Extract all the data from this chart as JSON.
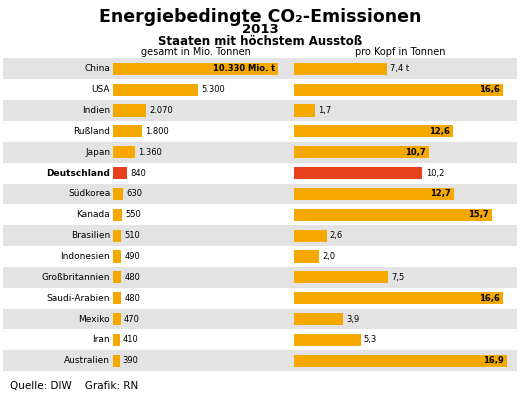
{
  "title_line1": "Energiebedingte CO₂-Emissionen",
  "title_line2": "2013",
  "title_line3": "Staaten mit höchstem Ausstoß",
  "col_header_left": "gesamt in Mio. Tonnen",
  "col_header_right": "pro Kopf in Tonnen",
  "footer": "Quelle: DIW    Grafik: RN",
  "countries": [
    "China",
    "USA",
    "Indien",
    "Rußland",
    "Japan",
    "Deutschland",
    "Südkorea",
    "Kanada",
    "Brasilien",
    "Indonesien",
    "Großbritannien",
    "Saudi-Arabien",
    "Mexiko",
    "Iran",
    "Australien"
  ],
  "total_values": [
    10330,
    5300,
    2070,
    1800,
    1360,
    840,
    630,
    550,
    510,
    490,
    480,
    480,
    470,
    410,
    390
  ],
  "total_labels": [
    "10.330 Mio. t",
    "5.300",
    "2.070",
    "1.800",
    "1.360",
    "840",
    "630",
    "550",
    "510",
    "490",
    "480",
    "480",
    "470",
    "410",
    "390"
  ],
  "percapita_values": [
    7.4,
    16.6,
    1.7,
    12.6,
    10.7,
    10.2,
    12.7,
    15.7,
    2.6,
    2.0,
    7.5,
    16.6,
    3.9,
    5.3,
    16.9
  ],
  "percapita_labels": [
    "7,4 t",
    "16,6",
    "1,7",
    "12,6",
    "10,7",
    "10,2",
    "12,7",
    "15,7",
    "2,6",
    "2,0",
    "7,5",
    "16,6",
    "3,9",
    "5,3",
    "16,9"
  ],
  "bold_country_index": 5,
  "deutschland_bar_color": "#e8401c",
  "default_bar_color": "#f5a800",
  "bg_color_odd": "#e3e3e3",
  "bg_color_even": "#ffffff",
  "fig_bg": "#ffffff",
  "max_total": 10330,
  "max_percapita": 16.9,
  "total_label_inside_threshold": 0.85,
  "percapita_label_inside_threshold": 0.62,
  "percapita_bold_inside": [
    1,
    7,
    11,
    14
  ]
}
